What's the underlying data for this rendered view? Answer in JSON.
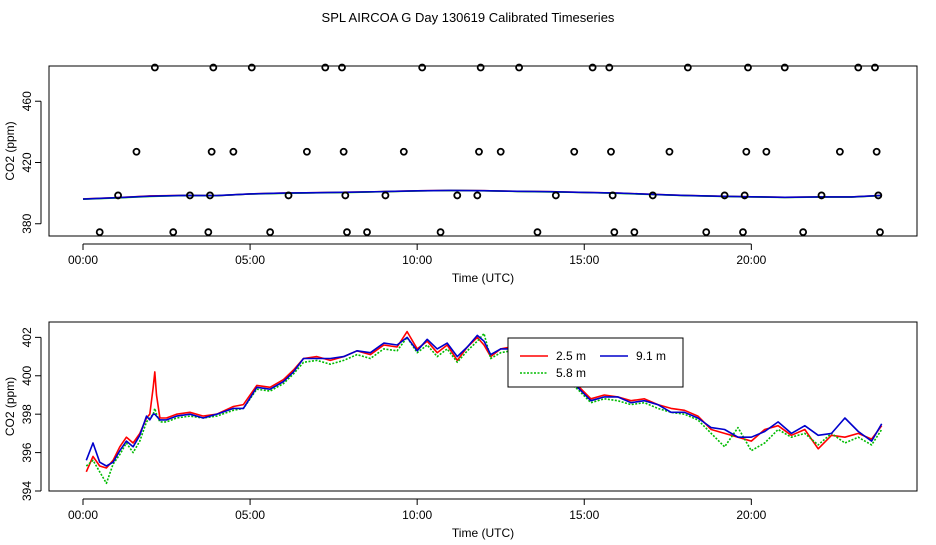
{
  "title": "SPL AIRCOA G  Day 130619  Calibrated Timeseries",
  "chart_data": [
    {
      "type": "scatter",
      "xlabel": "Time (UTC)",
      "ylabel": "CO2 (ppm)",
      "xlim": [
        0,
        24
      ],
      "ylim": [
        372,
        483
      ],
      "x_ticks": [
        0,
        5,
        10,
        15,
        20
      ],
      "x_tick_labels": [
        "00:00",
        "05:00",
        "10:00",
        "15:00",
        "20:00"
      ],
      "y_ticks": [
        380,
        420,
        460
      ],
      "y_tick_labels": [
        "380",
        "420",
        "460"
      ],
      "grid": false,
      "points": [
        {
          "x": 0.5,
          "y": 374.5
        },
        {
          "x": 1.05,
          "y": 398.5
        },
        {
          "x": 1.6,
          "y": 427
        },
        {
          "x": 2.15,
          "y": 482
        },
        {
          "x": 2.7,
          "y": 374.5
        },
        {
          "x": 3.2,
          "y": 398.5
        },
        {
          "x": 3.75,
          "y": 374.5
        },
        {
          "x": 3.8,
          "y": 398.5
        },
        {
          "x": 3.85,
          "y": 427
        },
        {
          "x": 3.9,
          "y": 482
        },
        {
          "x": 4.5,
          "y": 427
        },
        {
          "x": 5.05,
          "y": 482
        },
        {
          "x": 5.6,
          "y": 374.5
        },
        {
          "x": 6.15,
          "y": 398.5
        },
        {
          "x": 6.7,
          "y": 427
        },
        {
          "x": 7.25,
          "y": 482
        },
        {
          "x": 7.75,
          "y": 482
        },
        {
          "x": 7.8,
          "y": 427
        },
        {
          "x": 7.85,
          "y": 398.5
        },
        {
          "x": 7.9,
          "y": 374.5
        },
        {
          "x": 8.5,
          "y": 374.5
        },
        {
          "x": 9.05,
          "y": 398.5
        },
        {
          "x": 9.6,
          "y": 427
        },
        {
          "x": 10.15,
          "y": 482
        },
        {
          "x": 10.7,
          "y": 374.5
        },
        {
          "x": 11.2,
          "y": 398.5
        },
        {
          "x": 11.8,
          "y": 398.5
        },
        {
          "x": 11.85,
          "y": 427
        },
        {
          "x": 11.9,
          "y": 482
        },
        {
          "x": 12.5,
          "y": 427
        },
        {
          "x": 13.05,
          "y": 482
        },
        {
          "x": 13.6,
          "y": 374.5
        },
        {
          "x": 14.15,
          "y": 398.5
        },
        {
          "x": 14.7,
          "y": 427
        },
        {
          "x": 15.25,
          "y": 482
        },
        {
          "x": 15.75,
          "y": 482
        },
        {
          "x": 15.8,
          "y": 427
        },
        {
          "x": 15.85,
          "y": 398.5
        },
        {
          "x": 15.9,
          "y": 374.5
        },
        {
          "x": 16.5,
          "y": 374.5
        },
        {
          "x": 17.05,
          "y": 398.5
        },
        {
          "x": 17.55,
          "y": 427
        },
        {
          "x": 18.1,
          "y": 482
        },
        {
          "x": 18.65,
          "y": 374.5
        },
        {
          "x": 19.2,
          "y": 398.5
        },
        {
          "x": 19.75,
          "y": 374.5
        },
        {
          "x": 19.8,
          "y": 398.5
        },
        {
          "x": 19.85,
          "y": 427
        },
        {
          "x": 19.9,
          "y": 482
        },
        {
          "x": 20.45,
          "y": 427
        },
        {
          "x": 21.0,
          "y": 482
        },
        {
          "x": 21.55,
          "y": 374.5
        },
        {
          "x": 22.1,
          "y": 398.5
        },
        {
          "x": 22.65,
          "y": 427
        },
        {
          "x": 23.2,
          "y": 482
        },
        {
          "x": 23.7,
          "y": 482
        },
        {
          "x": 23.75,
          "y": 427
        },
        {
          "x": 23.8,
          "y": 398.5
        },
        {
          "x": 23.85,
          "y": 374.5
        }
      ],
      "series": [
        {
          "color": "#ff0000",
          "x": [
            0,
            1,
            2,
            3,
            4,
            5,
            6,
            7,
            8,
            9,
            10,
            11,
            12,
            13,
            14,
            15,
            16,
            17,
            18,
            19,
            20,
            21,
            22,
            23,
            23.9
          ],
          "values": [
            396.2,
            397.0,
            398.2,
            398.5,
            398.3,
            399.5,
            400.0,
            400.3,
            400.6,
            401.0,
            401.5,
            401.8,
            401.6,
            401.2,
            400.9,
            400.5,
            400.0,
            399.2,
            398.5,
            398.0,
            397.6,
            397.3,
            397.5,
            397.5,
            398.5
          ]
        },
        {
          "color": "#00cc00",
          "x": [
            0,
            1,
            2,
            3,
            4,
            5,
            6,
            7,
            8,
            9,
            10,
            11,
            12,
            13,
            14,
            15,
            16,
            17,
            18,
            19,
            20,
            21,
            22,
            23,
            23.9
          ],
          "values": [
            396.0,
            396.9,
            397.8,
            398.4,
            398.3,
            399.4,
            399.9,
            400.2,
            400.5,
            400.9,
            401.4,
            401.7,
            401.5,
            401.1,
            400.8,
            400.4,
            399.9,
            399.1,
            398.4,
            397.9,
            397.5,
            397.2,
            397.4,
            397.4,
            398.4
          ]
        },
        {
          "color": "#0000cc",
          "x": [
            0,
            1,
            2,
            3,
            4,
            5,
            6,
            7,
            8,
            9,
            10,
            11,
            12,
            13,
            14,
            15,
            16,
            17,
            18,
            19,
            20,
            21,
            22,
            23,
            23.9
          ],
          "values": [
            396.1,
            397.0,
            398.0,
            398.5,
            398.4,
            399.5,
            400.0,
            400.3,
            400.6,
            401.0,
            401.5,
            401.8,
            401.6,
            401.2,
            400.9,
            400.5,
            400.0,
            399.2,
            398.5,
            398.0,
            397.6,
            397.3,
            397.5,
            397.5,
            398.5
          ]
        }
      ]
    },
    {
      "type": "line",
      "xlabel": "Time (UTC)",
      "ylabel": "CO2 (ppm)",
      "xlim": [
        0,
        24
      ],
      "ylim": [
        394,
        402.8
      ],
      "x_ticks": [
        0,
        5,
        10,
        15,
        20
      ],
      "x_tick_labels": [
        "00:00",
        "05:00",
        "10:00",
        "15:00",
        "20:00"
      ],
      "y_ticks": [
        394,
        396,
        398,
        400,
        402
      ],
      "y_tick_labels": [
        "394",
        "396",
        "398",
        "400",
        "402"
      ],
      "grid": false,
      "legend": "top-right",
      "series": [
        {
          "name": "2.5 m",
          "color": "#ff0000",
          "dash": "solid",
          "x": [
            0.1,
            0.3,
            0.5,
            0.7,
            0.9,
            1.1,
            1.3,
            1.5,
            1.7,
            1.9,
            2.0,
            2.1,
            2.15,
            2.2,
            2.3,
            2.5,
            2.8,
            3.2,
            3.6,
            4.0,
            4.5,
            4.8,
            5.2,
            5.6,
            6.0,
            6.3,
            6.6,
            7.0,
            7.4,
            7.8,
            8.2,
            8.6,
            9.0,
            9.4,
            9.7,
            10.0,
            10.3,
            10.6,
            10.9,
            11.2,
            11.5,
            11.8,
            12.0,
            12.2,
            12.5,
            12.8,
            13.2,
            13.6,
            14.0,
            14.4,
            14.8,
            15.2,
            15.6,
            16.0,
            16.4,
            16.8,
            17.2,
            17.6,
            18.0,
            18.4,
            18.8,
            19.2,
            19.6,
            20.0,
            20.4,
            20.8,
            21.2,
            21.6,
            22.0,
            22.4,
            22.8,
            23.2,
            23.6,
            23.9
          ],
          "values": [
            395.0,
            395.8,
            395.3,
            395.2,
            395.6,
            396.3,
            396.8,
            396.5,
            397.0,
            397.8,
            398.0,
            399.4,
            400.2,
            399.0,
            397.8,
            397.8,
            398.0,
            398.1,
            397.9,
            398.0,
            398.4,
            398.5,
            399.5,
            399.4,
            399.8,
            400.3,
            400.9,
            401.0,
            400.8,
            401.0,
            401.3,
            401.1,
            401.6,
            401.5,
            402.3,
            401.4,
            401.8,
            401.2,
            401.6,
            400.8,
            401.5,
            402.0,
            401.6,
            401.0,
            401.4,
            401.5,
            401.0,
            400.5,
            400.2,
            400.0,
            399.5,
            398.8,
            399.0,
            398.9,
            398.7,
            398.8,
            398.5,
            398.3,
            398.2,
            397.9,
            397.2,
            397.0,
            396.8,
            396.6,
            397.2,
            397.4,
            396.9,
            397.2,
            396.2,
            396.9,
            396.8,
            397.0,
            396.7,
            397.4
          ]
        },
        {
          "name": "5.8 m",
          "color": "#00bb00",
          "dash": "dotted",
          "x": [
            0.1,
            0.3,
            0.5,
            0.7,
            0.9,
            1.1,
            1.3,
            1.5,
            1.7,
            1.9,
            2.0,
            2.1,
            2.15,
            2.2,
            2.3,
            2.5,
            2.8,
            3.2,
            3.6,
            4.0,
            4.5,
            4.8,
            5.2,
            5.6,
            6.0,
            6.3,
            6.6,
            7.0,
            7.4,
            7.8,
            8.2,
            8.6,
            9.0,
            9.4,
            9.7,
            10.0,
            10.3,
            10.6,
            10.9,
            11.2,
            11.5,
            11.8,
            12.0,
            12.2,
            12.5,
            12.8,
            13.2,
            13.6,
            14.0,
            14.4,
            14.8,
            15.2,
            15.6,
            16.0,
            16.4,
            16.8,
            17.2,
            17.6,
            18.0,
            18.4,
            18.8,
            19.2,
            19.6,
            20.0,
            20.4,
            20.8,
            21.2,
            21.6,
            22.0,
            22.4,
            22.8,
            23.2,
            23.6,
            23.9
          ],
          "values": [
            395.3,
            395.6,
            395.0,
            394.4,
            395.4,
            395.9,
            396.5,
            396.0,
            396.6,
            397.6,
            397.8,
            398.0,
            398.3,
            398.0,
            397.6,
            397.6,
            397.8,
            397.9,
            397.8,
            397.9,
            398.2,
            398.3,
            399.3,
            399.2,
            399.6,
            400.1,
            400.7,
            400.8,
            400.6,
            400.8,
            401.1,
            400.9,
            401.4,
            401.3,
            402.0,
            401.2,
            401.6,
            401.0,
            401.4,
            400.7,
            401.3,
            401.8,
            402.2,
            400.9,
            401.2,
            401.3,
            400.8,
            400.3,
            400.0,
            399.8,
            399.3,
            398.6,
            398.8,
            398.7,
            398.5,
            398.6,
            398.3,
            398.1,
            398.0,
            397.7,
            397.0,
            396.3,
            397.3,
            396.1,
            396.5,
            397.2,
            396.8,
            397.0,
            396.4,
            397.0,
            396.5,
            396.8,
            396.4,
            397.2
          ]
        },
        {
          "name": "9.1 m",
          "color": "#0000cc",
          "dash": "solid",
          "x": [
            0.1,
            0.3,
            0.5,
            0.7,
            0.9,
            1.1,
            1.3,
            1.5,
            1.7,
            1.9,
            2.0,
            2.1,
            2.15,
            2.2,
            2.3,
            2.5,
            2.8,
            3.2,
            3.6,
            4.0,
            4.5,
            4.8,
            5.2,
            5.6,
            6.0,
            6.3,
            6.6,
            7.0,
            7.4,
            7.8,
            8.2,
            8.6,
            9.0,
            9.4,
            9.7,
            10.0,
            10.3,
            10.6,
            10.9,
            11.2,
            11.5,
            11.8,
            12.0,
            12.2,
            12.5,
            12.8,
            13.2,
            13.6,
            14.0,
            14.4,
            14.8,
            15.2,
            15.6,
            16.0,
            16.4,
            16.8,
            17.2,
            17.6,
            18.0,
            18.4,
            18.8,
            19.2,
            19.6,
            20.0,
            20.4,
            20.8,
            21.2,
            21.6,
            22.0,
            22.4,
            22.8,
            23.2,
            23.6,
            23.9
          ],
          "values": [
            395.6,
            396.5,
            395.5,
            395.3,
            395.5,
            396.1,
            396.6,
            396.3,
            396.9,
            397.9,
            397.7,
            398.0,
            398.0,
            397.9,
            397.7,
            397.7,
            397.9,
            398.0,
            397.8,
            398.0,
            398.3,
            398.3,
            399.4,
            399.3,
            399.7,
            400.2,
            400.9,
            400.9,
            400.9,
            401.0,
            401.3,
            401.2,
            401.7,
            401.6,
            402.0,
            401.3,
            401.9,
            401.4,
            401.7,
            401.0,
            401.5,
            402.1,
            401.8,
            401.1,
            401.4,
            401.4,
            400.9,
            400.5,
            400.3,
            400.1,
            399.4,
            398.7,
            398.9,
            398.9,
            398.6,
            398.7,
            398.5,
            398.1,
            398.1,
            397.8,
            397.3,
            397.2,
            396.8,
            396.8,
            397.1,
            397.6,
            397.0,
            397.4,
            396.9,
            397.0,
            397.8,
            397.1,
            396.6,
            397.5
          ]
        }
      ]
    }
  ]
}
